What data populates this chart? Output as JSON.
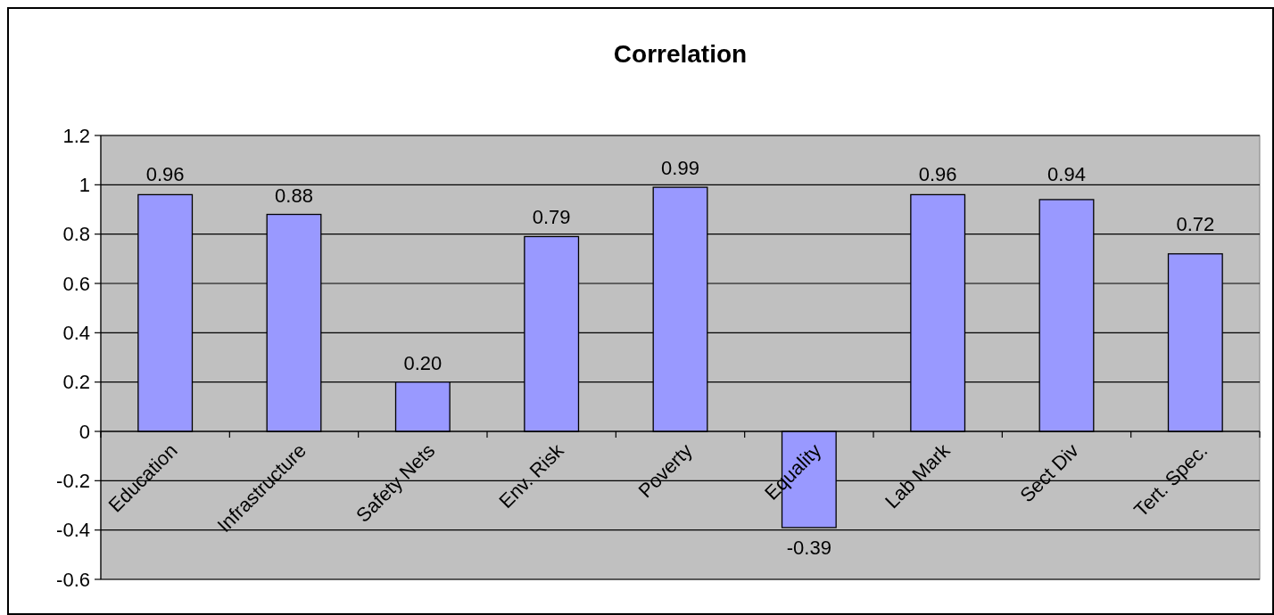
{
  "chart_data": {
    "type": "bar",
    "title": "Correlation",
    "categories": [
      "Education",
      "Infrastructure",
      "Safety Nets",
      "Env. Risk",
      "Poverty",
      "Equality",
      "Lab Mark",
      "Sect Div",
      "Tert. Spec."
    ],
    "values": [
      0.96,
      0.88,
      0.2,
      0.79,
      0.99,
      -0.39,
      0.96,
      0.94,
      0.72
    ],
    "value_labels": [
      "0.96",
      "0.88",
      "0.20",
      "0.79",
      "0.99",
      "-0.39",
      "0.96",
      "0.94",
      "0.72"
    ],
    "color": "#9999ff",
    "ylim": [
      -0.6,
      1.2
    ],
    "yticks": [
      -0.6,
      -0.4,
      -0.2,
      0,
      0.2,
      0.4,
      0.6,
      0.8,
      1,
      1.2
    ],
    "grid": "y"
  }
}
